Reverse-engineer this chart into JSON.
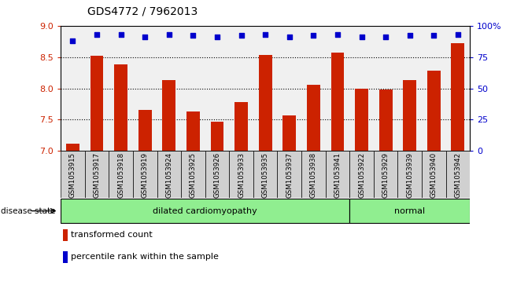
{
  "title": "GDS4772 / 7962013",
  "samples": [
    "GSM1053915",
    "GSM1053917",
    "GSM1053918",
    "GSM1053919",
    "GSM1053924",
    "GSM1053925",
    "GSM1053926",
    "GSM1053933",
    "GSM1053935",
    "GSM1053937",
    "GSM1053938",
    "GSM1053941",
    "GSM1053922",
    "GSM1053929",
    "GSM1053939",
    "GSM1053940",
    "GSM1053942"
  ],
  "bar_values": [
    7.12,
    8.52,
    8.38,
    7.65,
    8.13,
    7.63,
    7.47,
    7.78,
    8.53,
    7.57,
    8.06,
    8.57,
    7.99,
    7.98,
    8.13,
    8.28,
    8.72
  ],
  "dot_values": [
    88,
    93,
    93,
    91,
    93,
    92,
    91,
    92,
    93,
    91,
    92,
    93,
    91,
    91,
    92,
    92,
    93
  ],
  "ylim_left": [
    7,
    9
  ],
  "ylim_right": [
    0,
    100
  ],
  "yticks_left": [
    7,
    7.5,
    8,
    8.5,
    9
  ],
  "yticks_right": [
    0,
    25,
    50,
    75,
    100
  ],
  "ytick_labels_right": [
    "0",
    "25",
    "50",
    "75",
    "100%"
  ],
  "bar_color": "#CC2200",
  "dot_color": "#0000CC",
  "tick_label_color_left": "#CC2200",
  "tick_label_color_right": "#0000CC",
  "group_labels": [
    "dilated cardiomyopathy",
    "normal"
  ],
  "group_starts": [
    0,
    12
  ],
  "group_ends": [
    12,
    17
  ],
  "group_color": "#90EE90",
  "legend_items": [
    {
      "label": "transformed count",
      "color": "#CC2200"
    },
    {
      "label": "percentile rank within the sample",
      "color": "#0000CC"
    }
  ],
  "disease_state_label": "disease state",
  "plot_bg": "#F0F0F0"
}
